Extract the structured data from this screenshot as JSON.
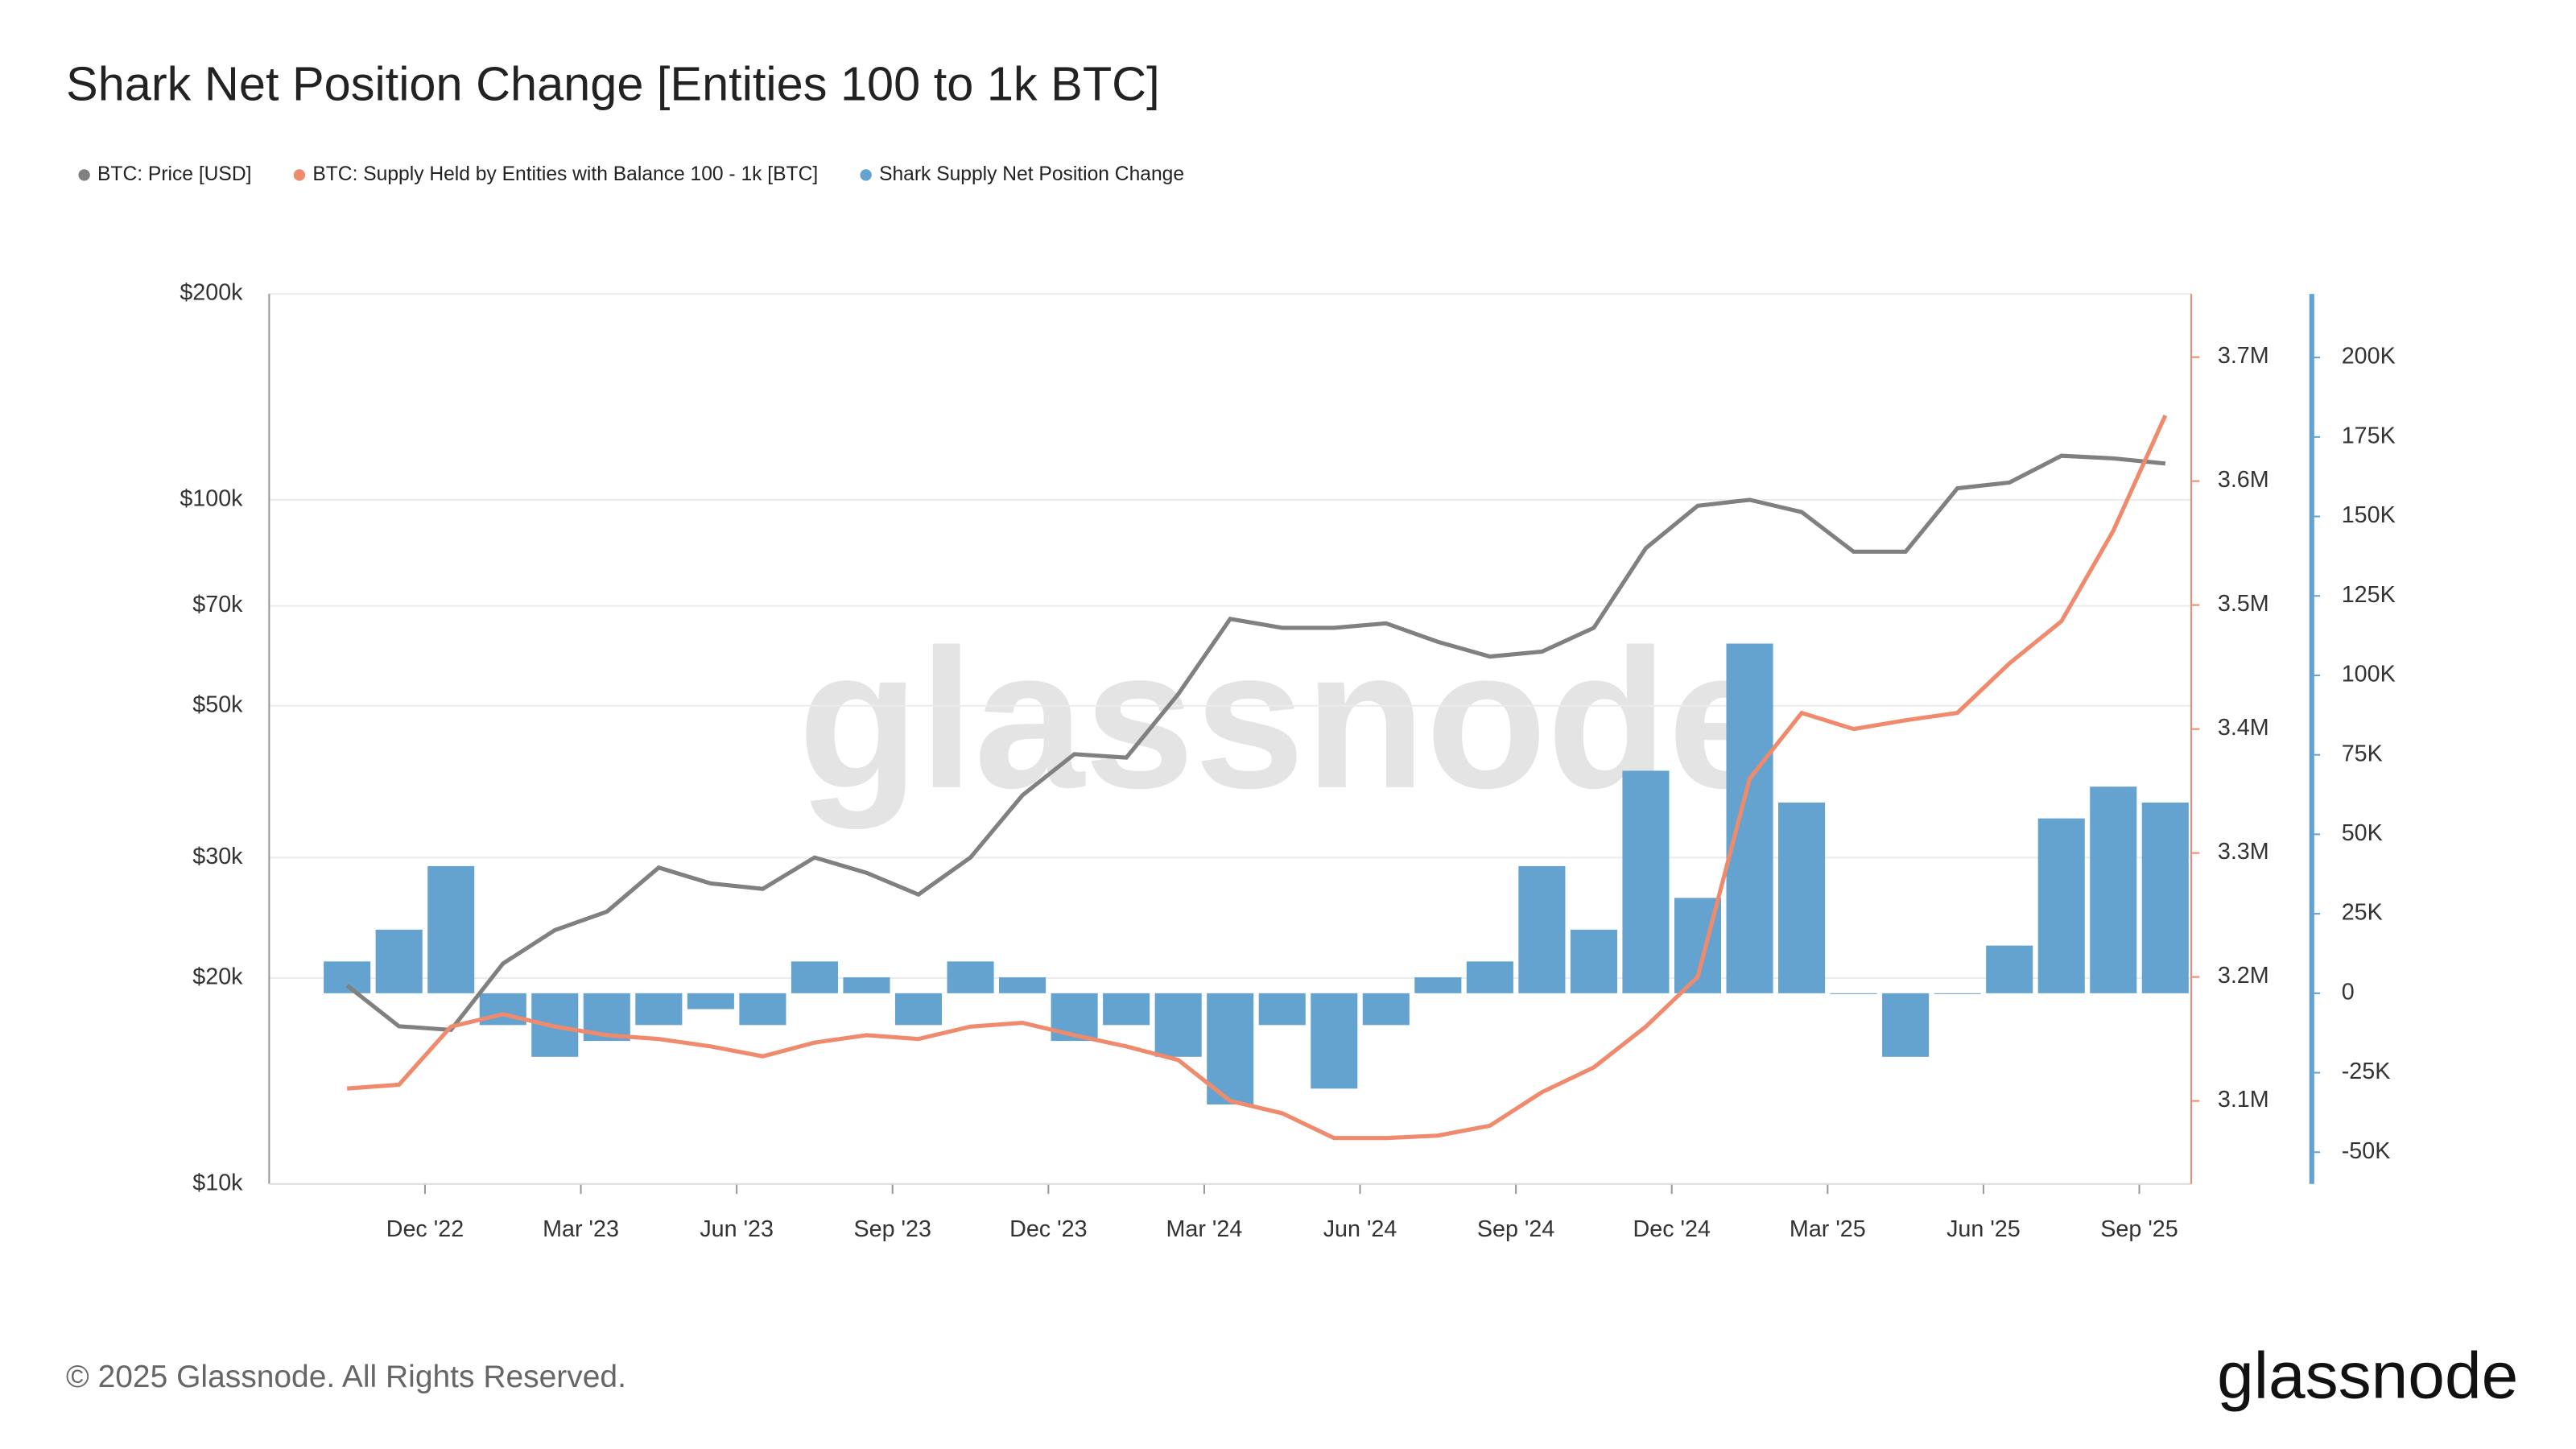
{
  "chart_data": {
    "type": "combo",
    "title": "Shark Net Position Change [Entities 100 to 1k BTC]",
    "watermark": "glassnode",
    "footer": "© 2025 Glassnode. All Rights Reserved.",
    "logo": "glassnode",
    "x": [
      "2022-10",
      "2022-11",
      "2022-12",
      "2023-01",
      "2023-02",
      "2023-03",
      "2023-04",
      "2023-05",
      "2023-06",
      "2023-07",
      "2023-08",
      "2023-09",
      "2023-10",
      "2023-11",
      "2023-12",
      "2024-01",
      "2024-02",
      "2024-03",
      "2024-04",
      "2024-05",
      "2024-06",
      "2024-07",
      "2024-08",
      "2024-09",
      "2024-10",
      "2024-11",
      "2024-12",
      "2025-01",
      "2025-02",
      "2025-03",
      "2025-04",
      "2025-05",
      "2025-06",
      "2025-07",
      "2025-08",
      "2025-09"
    ],
    "xlim": [
      "2022-09",
      "2025-10"
    ],
    "xticks": [
      {
        "value": "2022-12",
        "label": "Dec '22"
      },
      {
        "value": "2023-03",
        "label": "Mar '23"
      },
      {
        "value": "2023-06",
        "label": "Jun '23"
      },
      {
        "value": "2023-09",
        "label": "Sep '23"
      },
      {
        "value": "2023-12",
        "label": "Dec '23"
      },
      {
        "value": "2024-03",
        "label": "Mar '24"
      },
      {
        "value": "2024-06",
        "label": "Jun '24"
      },
      {
        "value": "2024-09",
        "label": "Sep '24"
      },
      {
        "value": "2024-12",
        "label": "Dec '24"
      },
      {
        "value": "2025-03",
        "label": "Mar '25"
      },
      {
        "value": "2025-06",
        "label": "Jun '25"
      },
      {
        "value": "2025-09",
        "label": "Sep '25"
      }
    ],
    "ylim": [
      10000,
      200000
    ],
    "yscale": "log",
    "yticks": [
      {
        "value": 10000,
        "label": "$10k"
      },
      {
        "value": 20000,
        "label": "$20k"
      },
      {
        "value": 30000,
        "label": "$30k"
      },
      {
        "value": 50000,
        "label": "$50k"
      },
      {
        "value": 70000,
        "label": "$70k"
      },
      {
        "value": 100000,
        "label": "$100k"
      },
      {
        "value": 200000,
        "label": "$200k"
      }
    ],
    "y2lim": [
      3033000,
      3751000
    ],
    "y2ticks": [
      {
        "value": 3100000,
        "label": "3.1M"
      },
      {
        "value": 3200000,
        "label": "3.2M"
      },
      {
        "value": 3300000,
        "label": "3.3M"
      },
      {
        "value": 3400000,
        "label": "3.4M"
      },
      {
        "value": 3500000,
        "label": "3.5M"
      },
      {
        "value": 3600000,
        "label": "3.6M"
      },
      {
        "value": 3700000,
        "label": "3.7M"
      }
    ],
    "y3lim": [
      -60000,
      220000
    ],
    "y3ticks": [
      {
        "value": -50000,
        "label": "-50K"
      },
      {
        "value": -25000,
        "label": "-25K"
      },
      0,
      {
        "value": 25000,
        "label": "25K"
      },
      {
        "value": 50000,
        "label": "50K"
      },
      {
        "value": 75000,
        "label": "75K"
      },
      {
        "value": 100000,
        "label": "100K"
      },
      {
        "value": 125000,
        "label": "125K"
      },
      {
        "value": 150000,
        "label": "150K"
      },
      {
        "value": 175000,
        "label": "175K"
      },
      {
        "value": 200000,
        "label": "200K"
      }
    ],
    "grid": true,
    "legend": "top-left",
    "series": [
      {
        "name": "BTC: Price [USD]",
        "color": "#808080",
        "kind": "line",
        "axis": "y",
        "values": [
          19500,
          17000,
          16800,
          21000,
          23500,
          25000,
          29000,
          27500,
          27000,
          30000,
          28500,
          26500,
          30000,
          37000,
          42500,
          42000,
          52000,
          67000,
          65000,
          65000,
          66000,
          62000,
          59000,
          60000,
          65000,
          85000,
          98000,
          100000,
          96000,
          84000,
          84000,
          104000,
          106000,
          116000,
          115000,
          113000
        ]
      },
      {
        "name": "BTC: Supply Held by Entities with Balance 100 - 1k [BTC]",
        "color": "#f08a6c",
        "kind": "line",
        "axis": "y2",
        "values": [
          3110000,
          3113000,
          3160000,
          3170000,
          3160000,
          3153000,
          3150000,
          3144000,
          3136000,
          3147000,
          3153000,
          3150000,
          3160000,
          3163000,
          3153000,
          3144000,
          3133000,
          3100000,
          3090000,
          3070000,
          3070000,
          3072000,
          3080000,
          3107000,
          3127000,
          3160000,
          3200000,
          3360000,
          3413000,
          3400000,
          3407000,
          3413000,
          3453000,
          3487000,
          3560000,
          3653000
        ]
      },
      {
        "name": "Shark Supply Net Position Change",
        "color": "#64a3cf",
        "kind": "bar",
        "axis": "y3",
        "values": [
          10000,
          20000,
          40000,
          -10000,
          -20000,
          -15000,
          -10000,
          -5000,
          -10000,
          10000,
          5000,
          -10000,
          10000,
          5000,
          -15000,
          -10000,
          -20000,
          -35000,
          -10000,
          -30000,
          -10000,
          5000,
          10000,
          40000,
          20000,
          70000,
          30000,
          110000,
          60000,
          0,
          -20000,
          0,
          15000,
          55000,
          65000,
          60000
        ]
      }
    ]
  }
}
